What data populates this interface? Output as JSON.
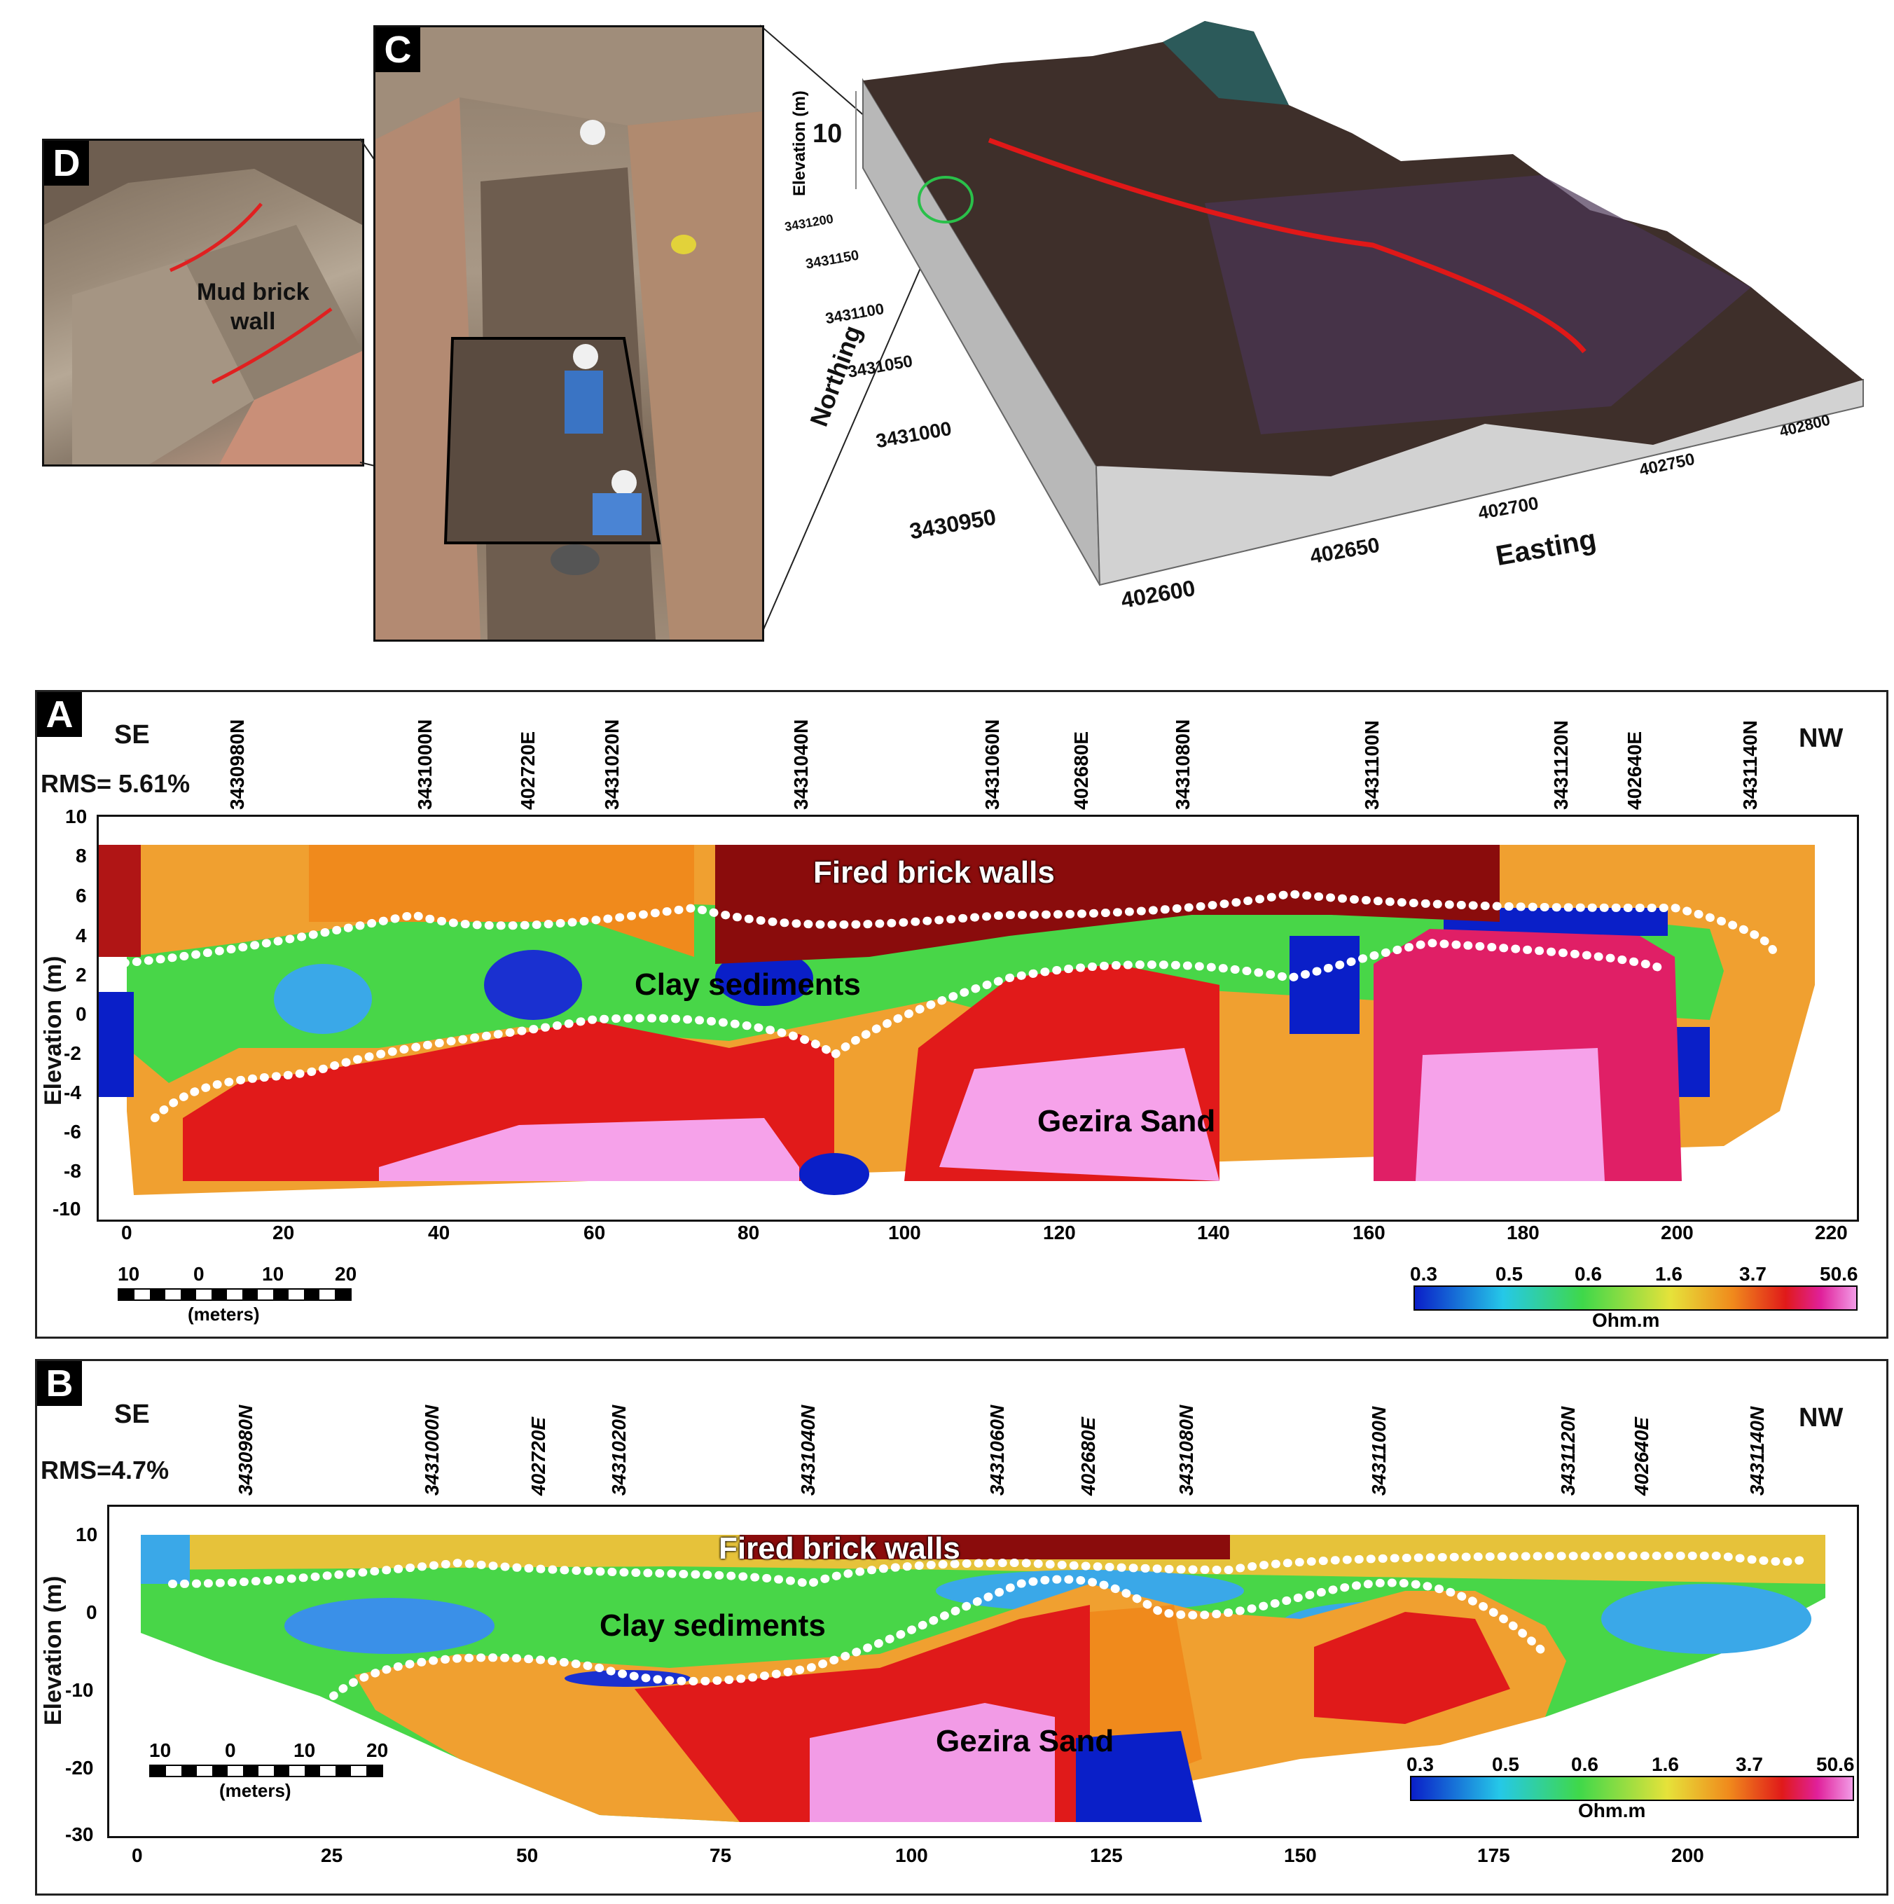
{
  "panels": {
    "A_letter": "A",
    "B_letter": "B",
    "C_letter": "C",
    "D_letter": "D"
  },
  "photo_d": {
    "label_line1": "Mud brick",
    "label_line2": "wall"
  },
  "model3d": {
    "elevation_axis": "Elevation (m)",
    "elevation_tick": "10",
    "northing_label": "Northing",
    "easting_label": "Easting",
    "northing_ticks": [
      "3431200",
      "3431150",
      "3431100",
      "3431050",
      "3431000",
      "3430950"
    ],
    "easting_ticks": [
      "402600",
      "402650",
      "402700",
      "402750",
      "402800"
    ]
  },
  "section_a": {
    "left_dir": "SE",
    "right_dir": "NW",
    "rms": "RMS= 5.61%",
    "coords": [
      "3430980N",
      "3431000N",
      "402720E",
      "3431020N",
      "3431040N",
      "3431060N",
      "402680E",
      "3431080N",
      "3431100N",
      "3431120N",
      "402640E",
      "3431140N"
    ],
    "y_label": "Elevation (m)",
    "y_ticks": [
      "10",
      "8",
      "6",
      "4",
      "2",
      "0",
      "-2",
      "-4",
      "-6",
      "-8",
      "-10"
    ],
    "x_ticks": [
      "0",
      "20",
      "40",
      "60",
      "80",
      "100",
      "120",
      "140",
      "160",
      "180",
      "200",
      "220"
    ],
    "layer1": "Fired brick walls",
    "layer2": "Clay sediments",
    "layer3": "Gezira Sand",
    "scale_ticks": [
      "10",
      "0",
      "10",
      "20"
    ],
    "scale_unit": "(meters)",
    "legend_values": [
      "0.3",
      "0.5",
      "0.6",
      "1.6",
      "3.7",
      "50.6"
    ],
    "legend_unit": "Ohm.m"
  },
  "section_b": {
    "left_dir": "SE",
    "right_dir": "NW",
    "rms": "RMS=4.7%",
    "coords": [
      "3430980N",
      "3431000N",
      "402720E",
      "3431020N",
      "3431040N",
      "3431060N",
      "402680E",
      "3431080N",
      "3431100N",
      "3431120N",
      "402640E",
      "3431140N"
    ],
    "y_label": "Elevation (m)",
    "y_ticks": [
      "10",
      "0",
      "-10",
      "-20",
      "-30"
    ],
    "x_ticks": [
      "0",
      "25",
      "50",
      "75",
      "100",
      "125",
      "150",
      "175",
      "200"
    ],
    "layer1": "Fired brick walls",
    "layer2": "Clay sediments",
    "layer3": "Gezira Sand",
    "scale_ticks": [
      "10",
      "0",
      "10",
      "20"
    ],
    "scale_unit": "(meters)",
    "legend_values": [
      "0.3",
      "0.5",
      "0.6",
      "1.6",
      "3.7",
      "50.6"
    ],
    "legend_unit": "Ohm.m"
  },
  "colors": {
    "blue": "#0a1fc8",
    "cyan": "#25c8e8",
    "green": "#3fd84a",
    "yellow": "#e6e23a",
    "orange": "#f08a1c",
    "red": "#e01a1a",
    "darkred": "#7a0a0a",
    "magenta": "#e0209a",
    "pink": "#f29be6"
  }
}
